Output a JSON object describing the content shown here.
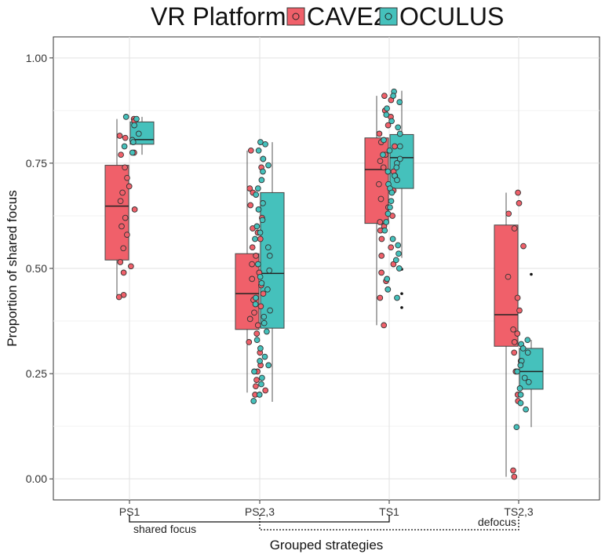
{
  "chart_data": {
    "type": "boxplot",
    "legend": {
      "title": "VR Platform",
      "entries": [
        "CAVE2",
        "OCULUS"
      ],
      "position": "top"
    },
    "colors": {
      "CAVE2": "#f0606a",
      "OCULUS": "#45c1bc"
    },
    "xlabel": "Grouped strategies",
    "ylabel": "Proportion of shared focus",
    "ylim": [
      -0.05,
      1.05
    ],
    "yticks": [
      0.0,
      0.25,
      0.5,
      0.75,
      1.0
    ],
    "ytick_labels": [
      "0.00",
      "0.25",
      "0.50",
      "0.75",
      "1.00"
    ],
    "grid": true,
    "categories": [
      "PS1",
      "PS2,3",
      "TS1",
      "TS2,3"
    ],
    "groups": [
      {
        "label": "shared focus",
        "from": "PS1",
        "to": "TS1",
        "style": "solid"
      },
      {
        "label": "defocus",
        "from": "PS2,3",
        "to": "TS2,3",
        "style": "dotted"
      }
    ],
    "series": [
      {
        "name": "CAVE2",
        "boxes": [
          {
            "category": "PS1",
            "min": 0.435,
            "q1": 0.52,
            "median": 0.648,
            "q3": 0.745,
            "max": 0.855,
            "outliers": []
          },
          {
            "category": "PS2,3",
            "min": 0.205,
            "q1": 0.355,
            "median": 0.44,
            "q3": 0.535,
            "max": 0.78,
            "outliers": []
          },
          {
            "category": "TS1",
            "min": 0.365,
            "q1": 0.607,
            "median": 0.735,
            "q3": 0.81,
            "max": 0.91,
            "outliers": []
          },
          {
            "category": "TS2,3",
            "min": 0.005,
            "q1": 0.315,
            "median": 0.39,
            "q3": 0.603,
            "max": 0.68,
            "outliers": []
          }
        ],
        "points": {
          "PS1": [
            0.855,
            0.85,
            0.815,
            0.81,
            0.775,
            0.77,
            0.74,
            0.715,
            0.695,
            0.68,
            0.66,
            0.64,
            0.62,
            0.6,
            0.58,
            0.548,
            0.515,
            0.505,
            0.49,
            0.437,
            0.432
          ],
          "PS2,3": [
            0.78,
            0.76,
            0.74,
            0.69,
            0.68,
            0.65,
            0.62,
            0.595,
            0.585,
            0.57,
            0.55,
            0.53,
            0.51,
            0.49,
            0.475,
            0.46,
            0.44,
            0.425,
            0.41,
            0.395,
            0.38,
            0.365,
            0.345,
            0.325,
            0.3,
            0.27,
            0.255,
            0.235,
            0.22,
            0.21,
            0.2
          ],
          "TS1": [
            0.91,
            0.9,
            0.875,
            0.86,
            0.84,
            0.82,
            0.8,
            0.79,
            0.77,
            0.755,
            0.74,
            0.73,
            0.72,
            0.7,
            0.685,
            0.665,
            0.645,
            0.625,
            0.61,
            0.6,
            0.59,
            0.57,
            0.55,
            0.53,
            0.51,
            0.49,
            0.47,
            0.45,
            0.43,
            0.365
          ],
          "TS2,3": [
            0.68,
            0.655,
            0.63,
            0.595,
            0.553,
            0.48,
            0.43,
            0.4,
            0.355,
            0.345,
            0.325,
            0.3,
            0.28,
            0.255,
            0.2,
            0.185,
            0.02,
            0.005
          ]
        }
      },
      {
        "name": "OCULUS",
        "boxes": [
          {
            "category": "PS1",
            "min": 0.77,
            "q1": 0.795,
            "median": 0.806,
            "q3": 0.848,
            "max": 0.86,
            "outliers": []
          },
          {
            "category": "PS2,3",
            "min": 0.183,
            "q1": 0.358,
            "median": 0.488,
            "q3": 0.68,
            "max": 0.8,
            "outliers": []
          },
          {
            "category": "TS1",
            "min": 0.525,
            "q1": 0.69,
            "median": 0.763,
            "q3": 0.818,
            "max": 0.922,
            "outliers": [
              0.498,
              0.44,
              0.407
            ]
          },
          {
            "category": "TS2,3",
            "min": 0.123,
            "q1": 0.213,
            "median": 0.255,
            "q3": 0.31,
            "max": 0.33,
            "outliers": [
              0.486
            ]
          }
        ],
        "points": {
          "PS1": [
            0.86,
            0.855,
            0.84,
            0.82,
            0.805,
            0.8,
            0.79,
            0.775
          ],
          "PS2,3": [
            0.8,
            0.795,
            0.78,
            0.76,
            0.745,
            0.73,
            0.71,
            0.69,
            0.675,
            0.655,
            0.64,
            0.615,
            0.6,
            0.585,
            0.57,
            0.55,
            0.53,
            0.51,
            0.495,
            0.48,
            0.465,
            0.45,
            0.43,
            0.415,
            0.4,
            0.385,
            0.37,
            0.35,
            0.33,
            0.31,
            0.29,
            0.28,
            0.27,
            0.255,
            0.24,
            0.225,
            0.2,
            0.185
          ],
          "TS1": [
            0.92,
            0.91,
            0.895,
            0.88,
            0.865,
            0.85,
            0.835,
            0.82,
            0.805,
            0.79,
            0.78,
            0.77,
            0.76,
            0.75,
            0.74,
            0.73,
            0.72,
            0.71,
            0.7,
            0.69,
            0.68,
            0.66,
            0.645,
            0.63,
            0.61,
            0.59,
            0.57,
            0.555,
            0.535,
            0.52,
            0.5,
            0.475,
            0.45,
            0.43
          ],
          "TS2,3": [
            0.33,
            0.32,
            0.31,
            0.3,
            0.28,
            0.27,
            0.255,
            0.24,
            0.23,
            0.215,
            0.2,
            0.18,
            0.165,
            0.123
          ]
        }
      }
    ]
  }
}
